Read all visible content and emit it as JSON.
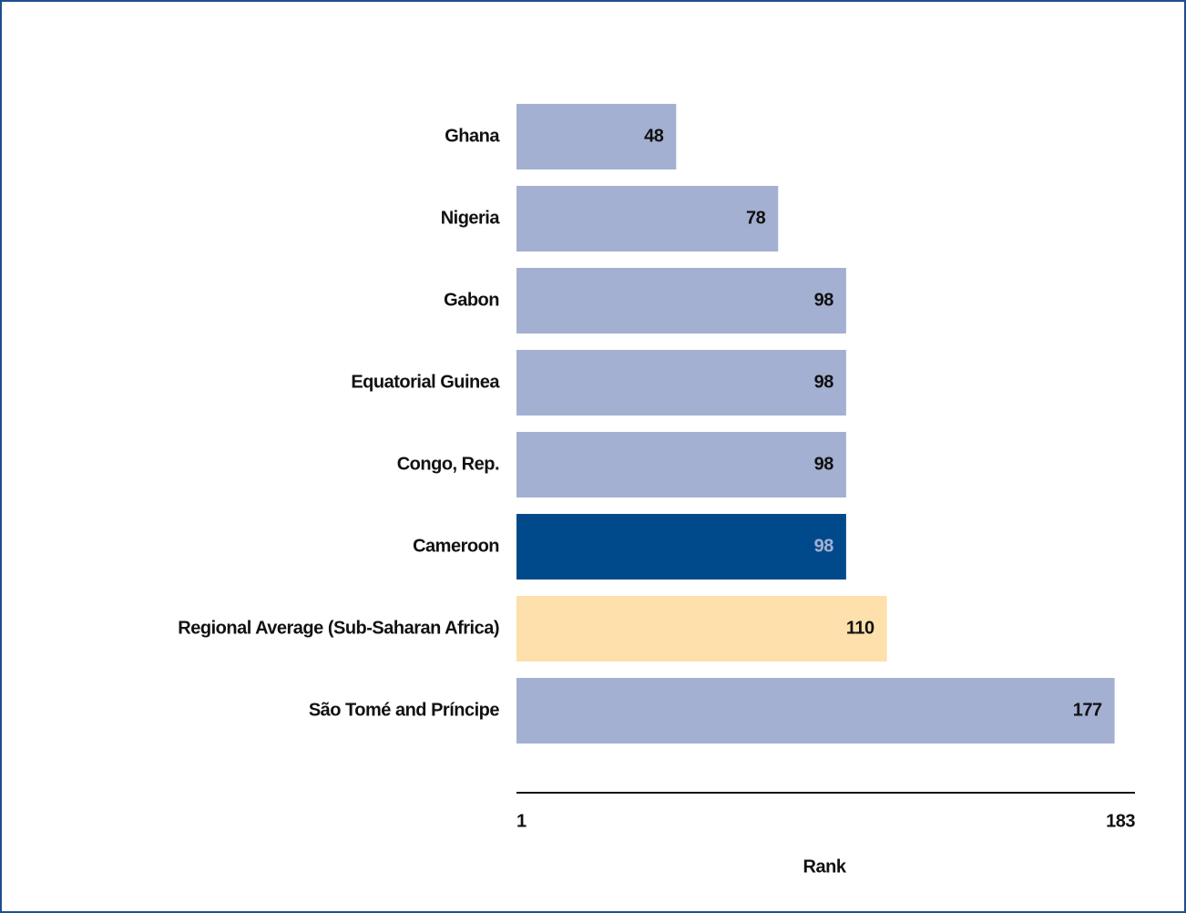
{
  "chart_data": {
    "type": "barh",
    "categories": [
      "Ghana",
      "Nigeria",
      "Gabon",
      "Equatorial Guinea",
      "Congo, Rep.",
      "Cameroon",
      "Regional Average (Sub-Saharan Africa)",
      "São Tomé and Príncipe"
    ],
    "values": [
      48,
      78,
      98,
      98,
      98,
      98,
      110,
      177
    ],
    "colors": [
      "#a4b0d2",
      "#a4b0d2",
      "#a4b0d2",
      "#a4b0d2",
      "#a4b0d2",
      "#004a8b",
      "#fde0ab",
      "#a4b0d2"
    ],
    "xlim": [
      1,
      183
    ],
    "xticks": [
      1,
      183
    ],
    "xlabel": "Rank"
  }
}
